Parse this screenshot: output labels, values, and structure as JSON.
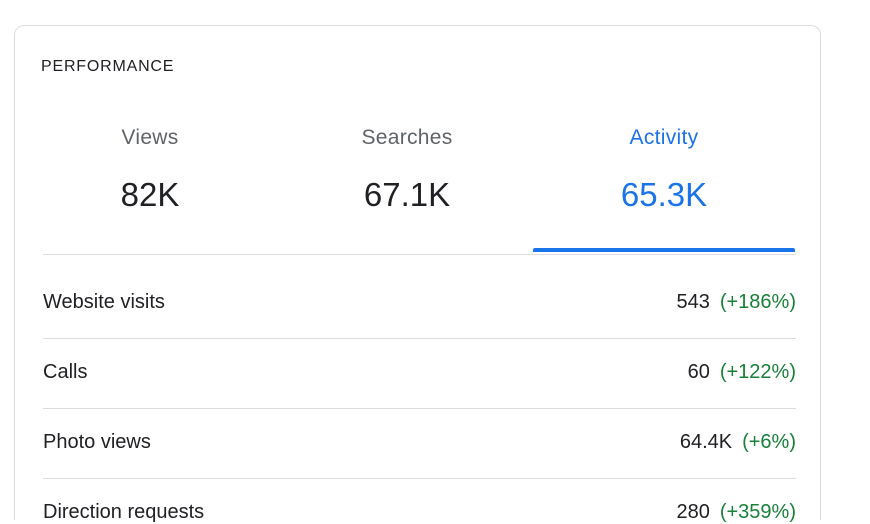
{
  "header": {
    "title": "PERFORMANCE"
  },
  "tabs": [
    {
      "label": "Views",
      "value": "82K"
    },
    {
      "label": "Searches",
      "value": "67.1K"
    },
    {
      "label": "Activity",
      "value": "65.3K",
      "active": true
    }
  ],
  "rows": [
    {
      "label": "Website visits",
      "value": "543",
      "change": "(+186%)"
    },
    {
      "label": "Calls",
      "value": "60",
      "change": "(+122%)"
    },
    {
      "label": "Photo views",
      "value": "64.4K",
      "change": "(+6%)"
    },
    {
      "label": "Direction requests",
      "value": "280",
      "change": "(+359%)"
    }
  ]
}
